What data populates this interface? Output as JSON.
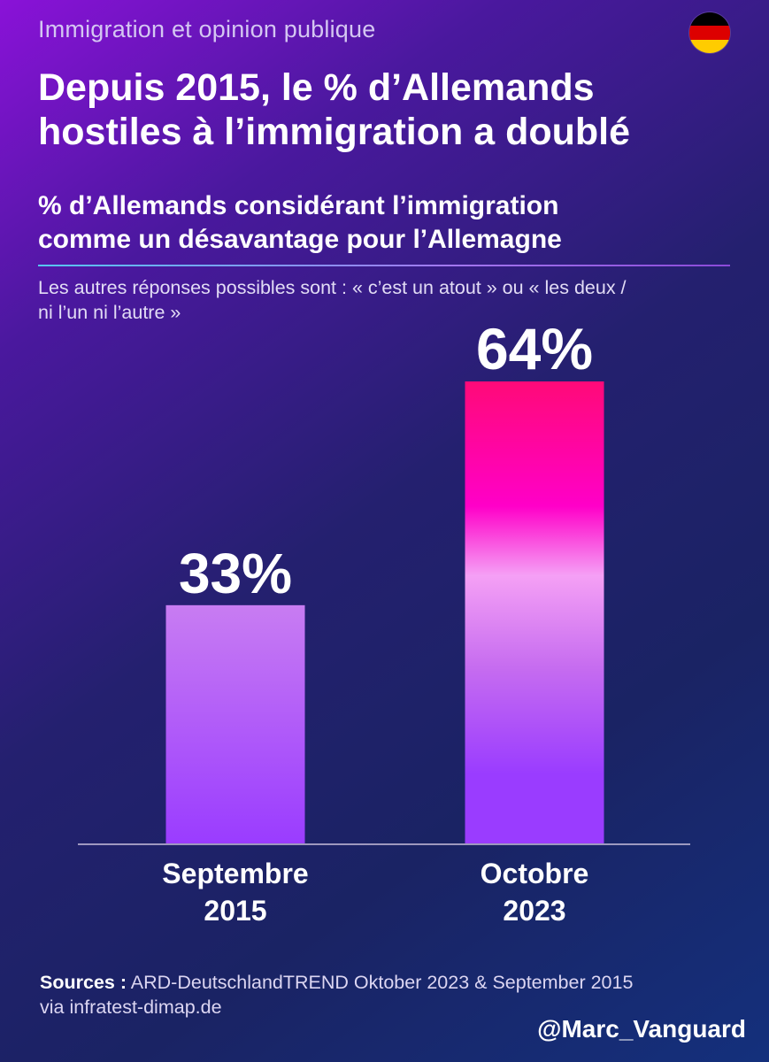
{
  "kicker": "Immigration et opinion publique",
  "headline_line1": "Depuis 2015, le % d’Allemands",
  "headline_line2": "hostiles à l’immigration a doublé",
  "subtitle_line1": "% d’Allemands considérant l’immigration",
  "subtitle_line2": "comme un désavantage pour l’Allemagne",
  "note_line1": "Les autres réponses possibles sont : « c’est un atout » ou « les deux /",
  "note_line2": "ni l’un ni l’autre »",
  "flag_icon": "germany-flag-icon",
  "flag_colors": [
    "#000000",
    "#dd0000",
    "#ffcc00"
  ],
  "sources_label": "Sources :",
  "sources_text": "ARD-DeutschlandTREND Oktober 2023 & September 2015",
  "sources_line2": "via infratest-dimap.de",
  "handle": "@Marc_Vanguard",
  "colors": {
    "bar_2015": [
      "#c87cf2",
      "#9a3cff"
    ],
    "bar_2023": [
      "#ff0a78",
      "#ff00c8",
      "#f5a0f5",
      "#c66cf0",
      "#9a3cff"
    ],
    "baseline": "#c9c0dc"
  },
  "chart_data": {
    "type": "bar",
    "categories": [
      [
        "Septembre",
        "2015"
      ],
      [
        "Octobre",
        "2023"
      ]
    ],
    "values": [
      33,
      64
    ],
    "data_labels": [
      "33%",
      "64%"
    ],
    "unit": "%",
    "ylim": [
      0,
      64
    ],
    "grid": false,
    "legend": "none"
  }
}
